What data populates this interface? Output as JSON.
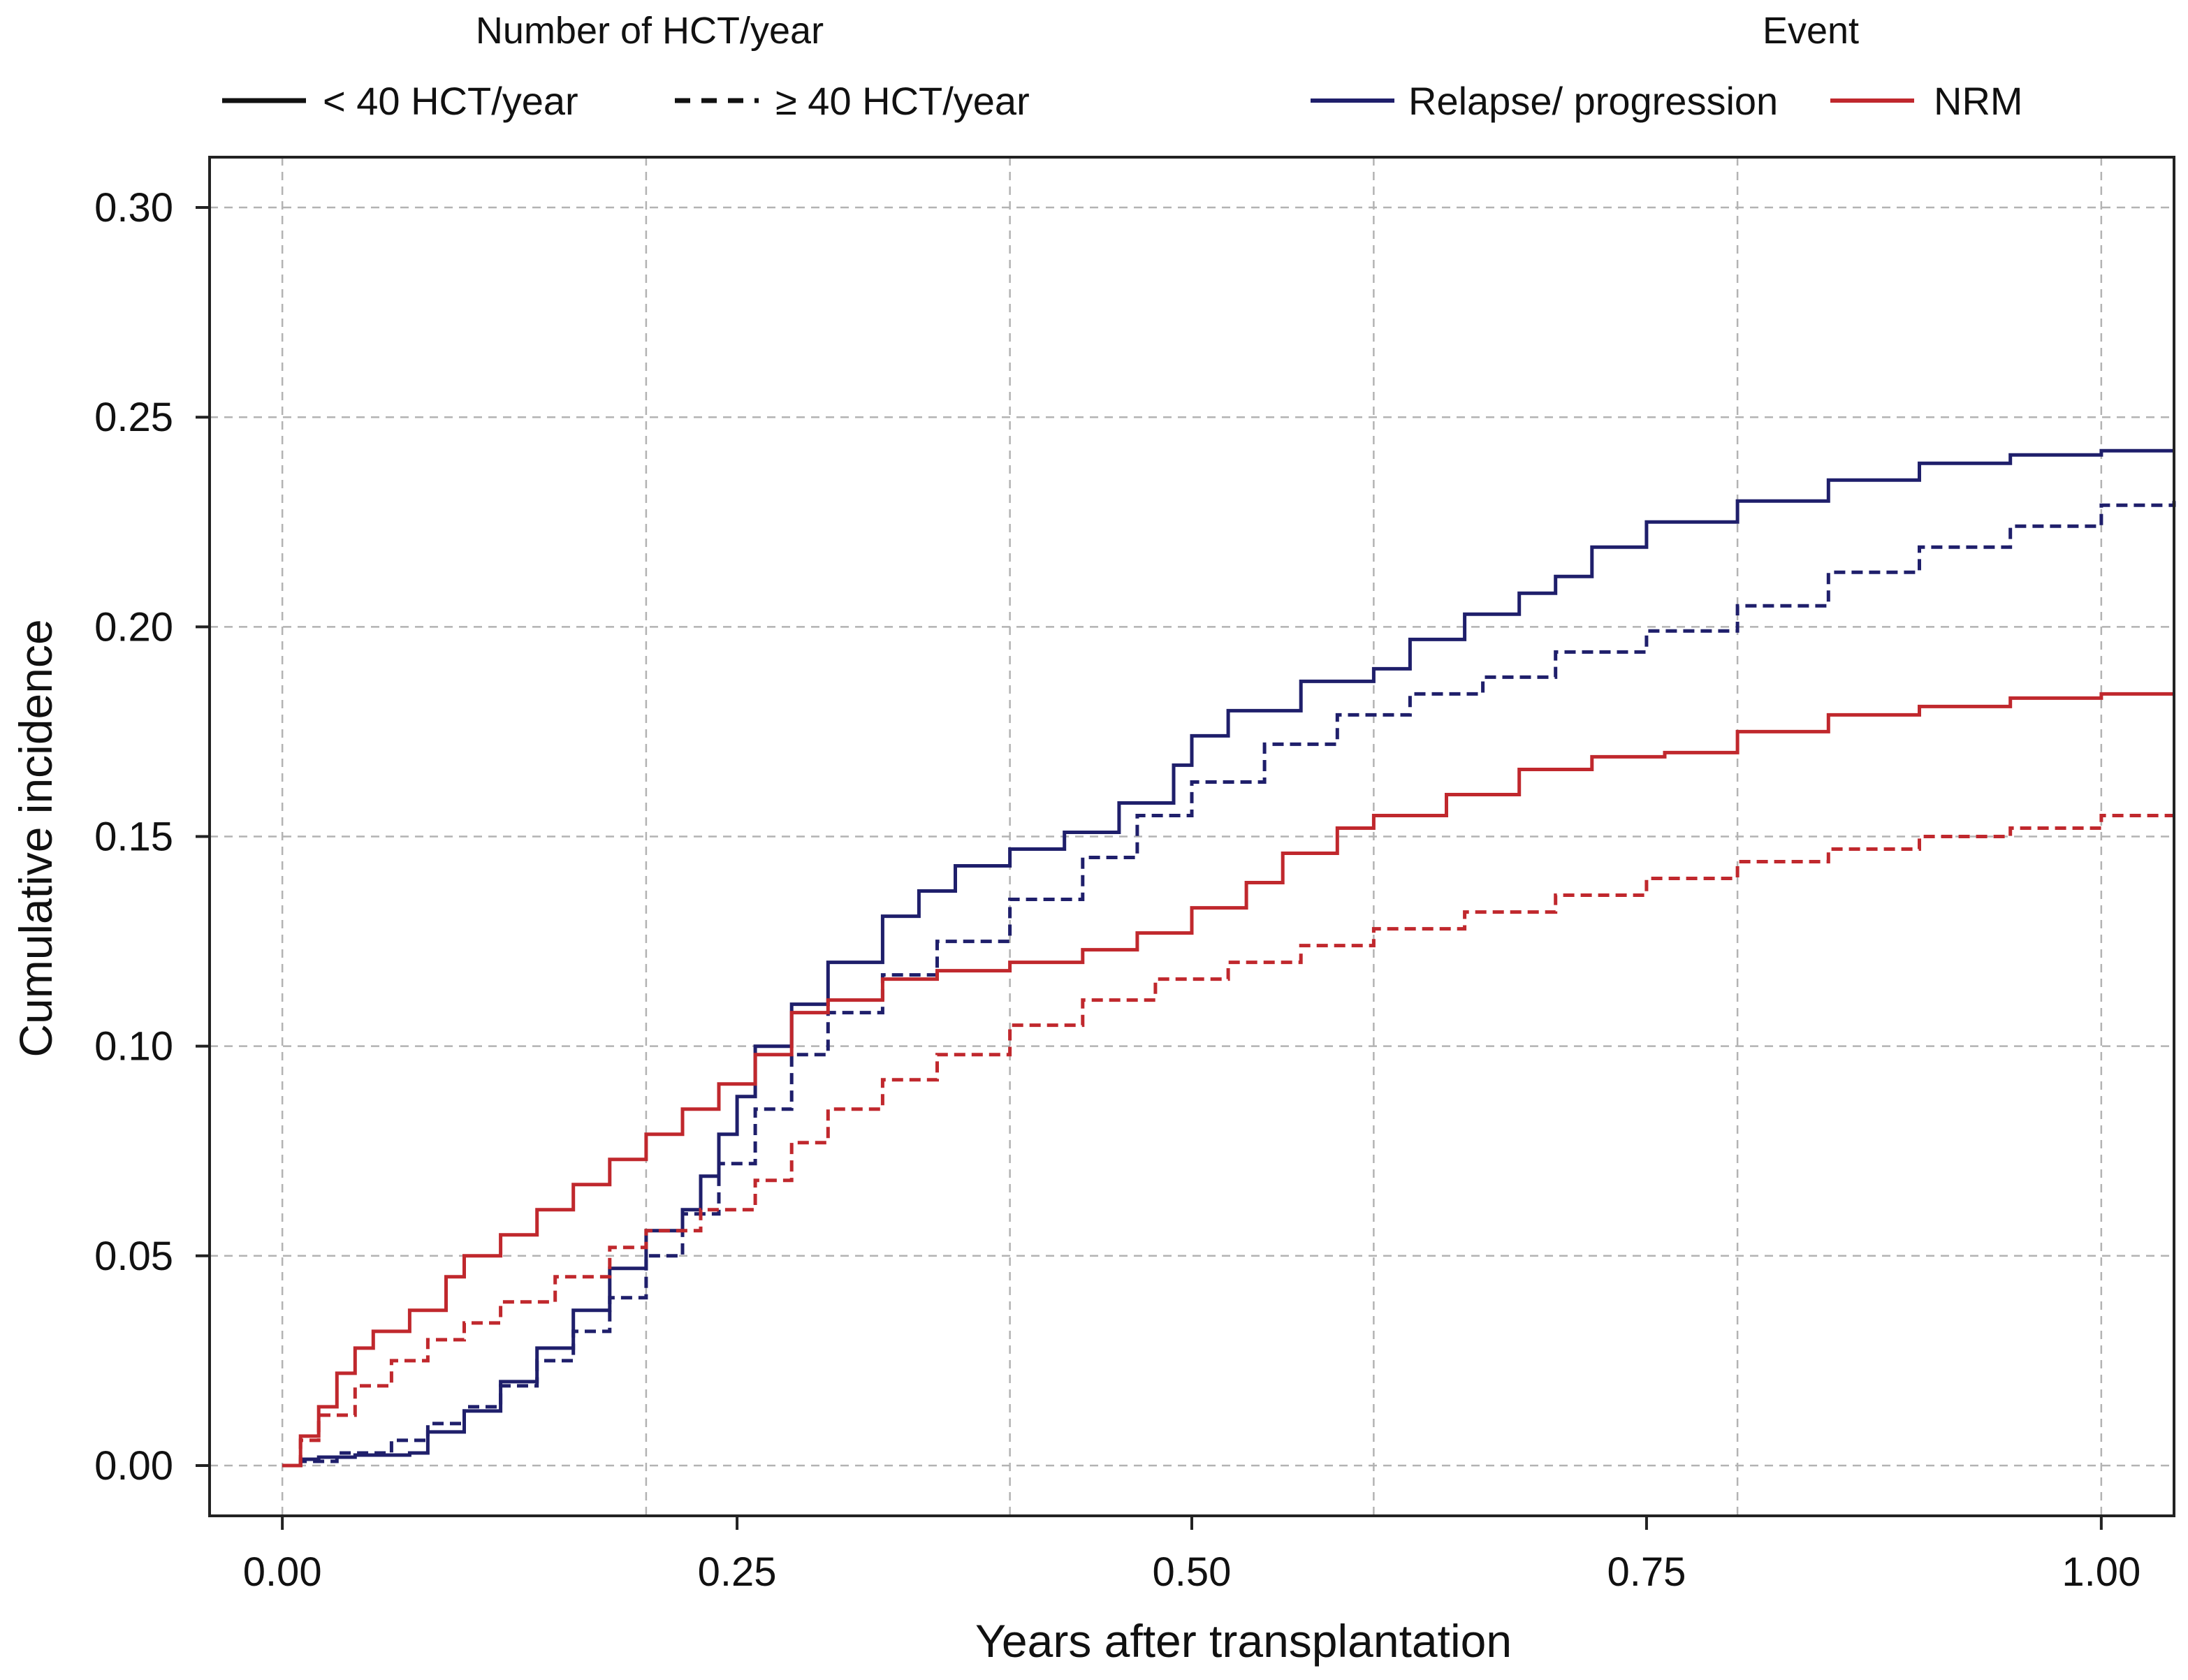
{
  "chart_data": {
    "type": "line",
    "title": "",
    "xlabel": "Years after transplantation",
    "ylabel": "Cumulative incidence",
    "xlim": [
      -0.04,
      1.04
    ],
    "ylim": [
      -0.012,
      0.312
    ],
    "grid": true,
    "x_ticks": [
      0.0,
      0.25,
      0.5,
      0.75,
      1.0
    ],
    "x_tick_labels": [
      "0.00",
      "0.25",
      "0.50",
      "0.75",
      "1.00"
    ],
    "x_grid": [
      0.0,
      0.2,
      0.4,
      0.6,
      0.8,
      1.0
    ],
    "y_ticks": [
      0.0,
      0.05,
      0.1,
      0.15,
      0.2,
      0.25,
      0.3
    ],
    "y_tick_labels": [
      "0.00",
      "0.05",
      "0.10",
      "0.15",
      "0.20",
      "0.25",
      "0.30"
    ],
    "legend": {
      "placement": "top",
      "groups": [
        {
          "title": "Number of HCT/year",
          "entries": [
            {
              "label": "< 40 HCT/year",
              "style": "solid",
              "color": "#111111"
            },
            {
              "label": "≥ 40 HCT/year",
              "style": "dashed",
              "color": "#111111"
            }
          ]
        },
        {
          "title": "Event",
          "entries": [
            {
              "label": "Relapse/ progression",
              "style": "solid",
              "color": "#1f1f6b"
            },
            {
              "label": "NRM",
              "style": "solid",
              "color": "#c0282d"
            }
          ]
        }
      ]
    },
    "series": [
      {
        "name": "Relapse/ progression, < 40 HCT/year",
        "color": "#1f1f6b",
        "style": "solid",
        "x": [
          0,
          0.01,
          0.02,
          0.04,
          0.07,
          0.08,
          0.1,
          0.12,
          0.14,
          0.16,
          0.18,
          0.2,
          0.22,
          0.23,
          0.24,
          0.25,
          0.26,
          0.28,
          0.3,
          0.33,
          0.35,
          0.37,
          0.4,
          0.43,
          0.46,
          0.49,
          0.5,
          0.52,
          0.56,
          0.6,
          0.62,
          0.65,
          0.68,
          0.7,
          0.72,
          0.75,
          0.8,
          0.85,
          0.9,
          0.95,
          1.0,
          1.04
        ],
        "y": [
          0,
          0.0015,
          0.002,
          0.0025,
          0.003,
          0.008,
          0.013,
          0.02,
          0.028,
          0.037,
          0.047,
          0.056,
          0.061,
          0.069,
          0.079,
          0.088,
          0.1,
          0.11,
          0.12,
          0.131,
          0.137,
          0.143,
          0.147,
          0.151,
          0.158,
          0.167,
          0.174,
          0.18,
          0.187,
          0.19,
          0.197,
          0.203,
          0.208,
          0.212,
          0.219,
          0.225,
          0.23,
          0.235,
          0.239,
          0.241,
          0.242,
          0.242
        ]
      },
      {
        "name": "Relapse/ progression, ≥ 40 HCT/year",
        "color": "#1f1f6b",
        "style": "dashed",
        "x": [
          0,
          0.01,
          0.03,
          0.06,
          0.08,
          0.1,
          0.12,
          0.14,
          0.16,
          0.18,
          0.2,
          0.22,
          0.24,
          0.26,
          0.28,
          0.3,
          0.33,
          0.36,
          0.4,
          0.44,
          0.47,
          0.5,
          0.54,
          0.58,
          0.62,
          0.66,
          0.7,
          0.75,
          0.8,
          0.85,
          0.9,
          0.95,
          1.0,
          1.04
        ],
        "y": [
          0,
          0.001,
          0.003,
          0.006,
          0.01,
          0.014,
          0.019,
          0.025,
          0.032,
          0.04,
          0.05,
          0.06,
          0.072,
          0.085,
          0.098,
          0.108,
          0.117,
          0.125,
          0.135,
          0.145,
          0.155,
          0.163,
          0.172,
          0.179,
          0.184,
          0.188,
          0.194,
          0.199,
          0.205,
          0.213,
          0.219,
          0.224,
          0.229,
          0.23
        ]
      },
      {
        "name": "NRM, < 40 HCT/year",
        "color": "#c0282d",
        "style": "solid",
        "x": [
          0,
          0.01,
          0.02,
          0.03,
          0.04,
          0.05,
          0.07,
          0.09,
          0.1,
          0.12,
          0.14,
          0.16,
          0.18,
          0.2,
          0.22,
          0.24,
          0.26,
          0.28,
          0.3,
          0.33,
          0.36,
          0.4,
          0.44,
          0.47,
          0.5,
          0.53,
          0.55,
          0.58,
          0.6,
          0.64,
          0.68,
          0.72,
          0.76,
          0.8,
          0.85,
          0.9,
          0.95,
          1.0,
          1.04
        ],
        "y": [
          0,
          0.007,
          0.014,
          0.022,
          0.028,
          0.032,
          0.037,
          0.045,
          0.05,
          0.055,
          0.061,
          0.067,
          0.073,
          0.079,
          0.085,
          0.091,
          0.098,
          0.108,
          0.111,
          0.116,
          0.118,
          0.12,
          0.123,
          0.127,
          0.133,
          0.139,
          0.146,
          0.152,
          0.155,
          0.16,
          0.166,
          0.169,
          0.17,
          0.175,
          0.179,
          0.181,
          0.183,
          0.184,
          0.184
        ]
      },
      {
        "name": "NRM, ≥ 40 HCT/year",
        "color": "#c0282d",
        "style": "dashed",
        "x": [
          0,
          0.01,
          0.02,
          0.04,
          0.06,
          0.08,
          0.1,
          0.12,
          0.15,
          0.18,
          0.2,
          0.23,
          0.26,
          0.28,
          0.3,
          0.33,
          0.36,
          0.4,
          0.44,
          0.48,
          0.52,
          0.56,
          0.6,
          0.65,
          0.7,
          0.75,
          0.8,
          0.85,
          0.9,
          0.95,
          1.0,
          1.04
        ],
        "y": [
          0,
          0.006,
          0.012,
          0.019,
          0.025,
          0.03,
          0.034,
          0.039,
          0.045,
          0.052,
          0.056,
          0.061,
          0.068,
          0.077,
          0.085,
          0.092,
          0.098,
          0.105,
          0.111,
          0.116,
          0.12,
          0.124,
          0.128,
          0.132,
          0.136,
          0.14,
          0.144,
          0.147,
          0.15,
          0.152,
          0.155,
          0.155
        ]
      }
    ]
  }
}
